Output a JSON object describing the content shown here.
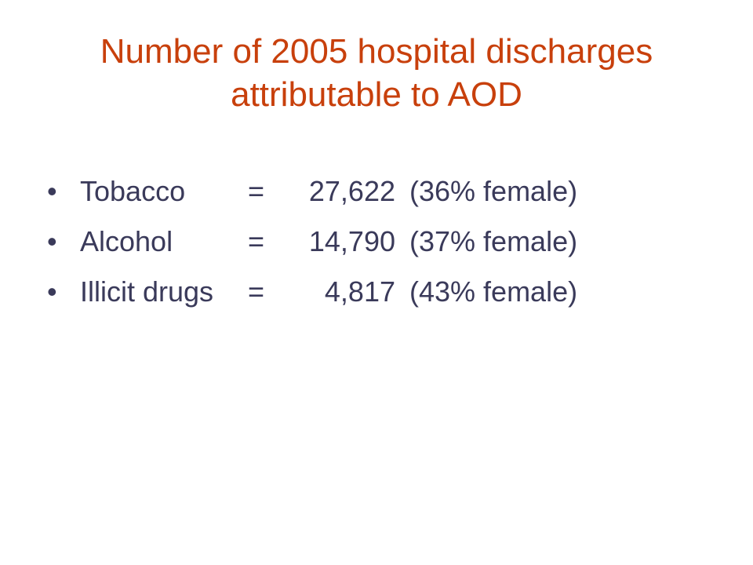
{
  "slide": {
    "title_line_1": "Number of 2005 hospital discharges",
    "title_line_2": "attributable to AOD",
    "bullet_glyph": "•",
    "items": [
      {
        "label": "Tobacco",
        "sign": "=",
        "value": "27,622",
        "note": "(36% female)"
      },
      {
        "label": "Alcohol",
        "sign": "=",
        "value": "14,790",
        "note": "(37% female)"
      },
      {
        "label": "Illicit drugs",
        "sign": "=",
        "value": "4,817",
        "note": "(43% female)"
      }
    ]
  },
  "colors": {
    "title": "#c8400c",
    "body_text": "#3a3a5a",
    "background": "#ffffff"
  }
}
